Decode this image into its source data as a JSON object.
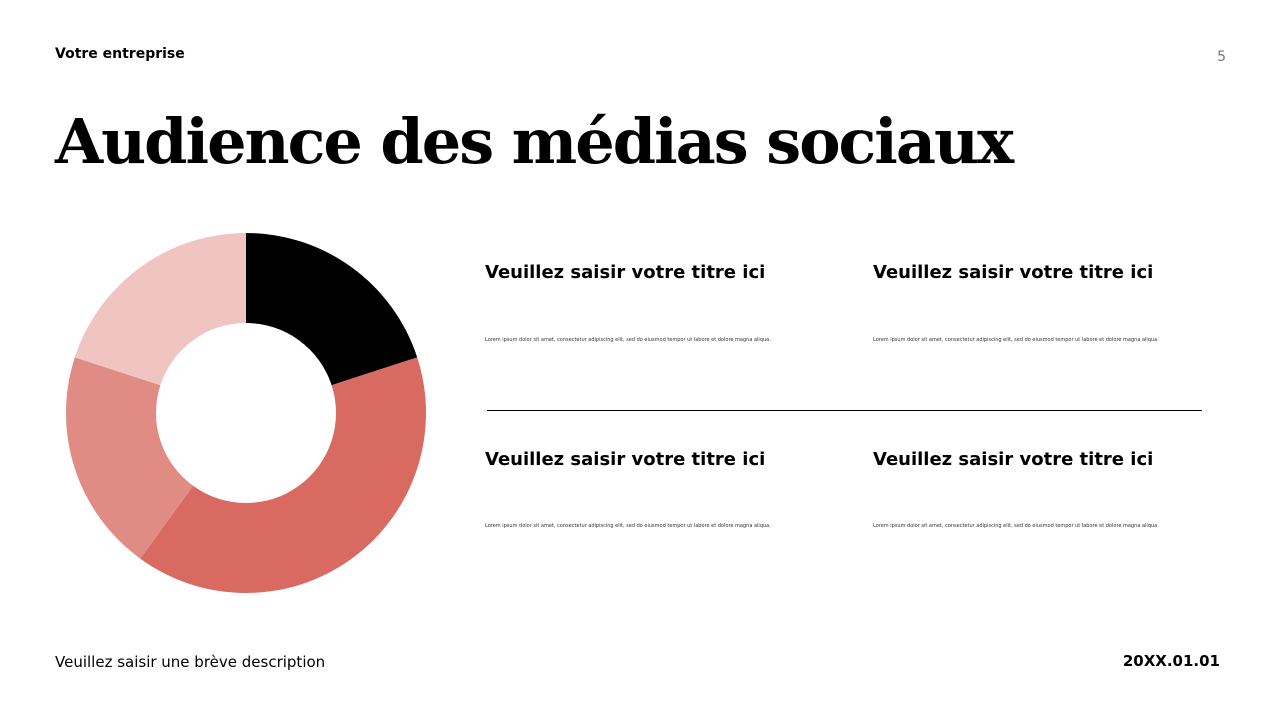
{
  "header": {
    "company": "Votre entreprise",
    "page_number": "5"
  },
  "slide": {
    "title": "Audience des médias sociaux"
  },
  "chart_data": {
    "type": "donut",
    "values": [
      20,
      40,
      20,
      20
    ],
    "colors": [
      "#000000",
      "#d86a62",
      "#e08c85",
      "#f0c5c1"
    ]
  },
  "items": [
    {
      "title": "Veuillez saisir votre titre ici",
      "text": "Lorem ipsum dolor sit amet, consectetur adipiscing elit, sed do eiusmod tempor ut labore et dolore magna aliqua."
    },
    {
      "title": "Veuillez saisir votre titre ici",
      "text": "Lorem ipsum dolor sit amet, consectetur adipiscing elit, sed do eiusmod tempor ut labore et dolore magna aliqua."
    },
    {
      "title": "Veuillez saisir votre titre ici",
      "text": "Lorem ipsum dolor sit amet, consectetur adipiscing elit, sed do eiusmod tempor ut labore et dolore magna aliqua."
    },
    {
      "title": "Veuillez saisir votre titre ici",
      "text": "Lorem ipsum dolor sit amet, consectetur adipiscing elit, sed do eiusmod tempor ut labore et dolore magna aliqua."
    }
  ],
  "footer": {
    "description": "Veuillez saisir une brève description",
    "date": "20XX.01.01"
  }
}
